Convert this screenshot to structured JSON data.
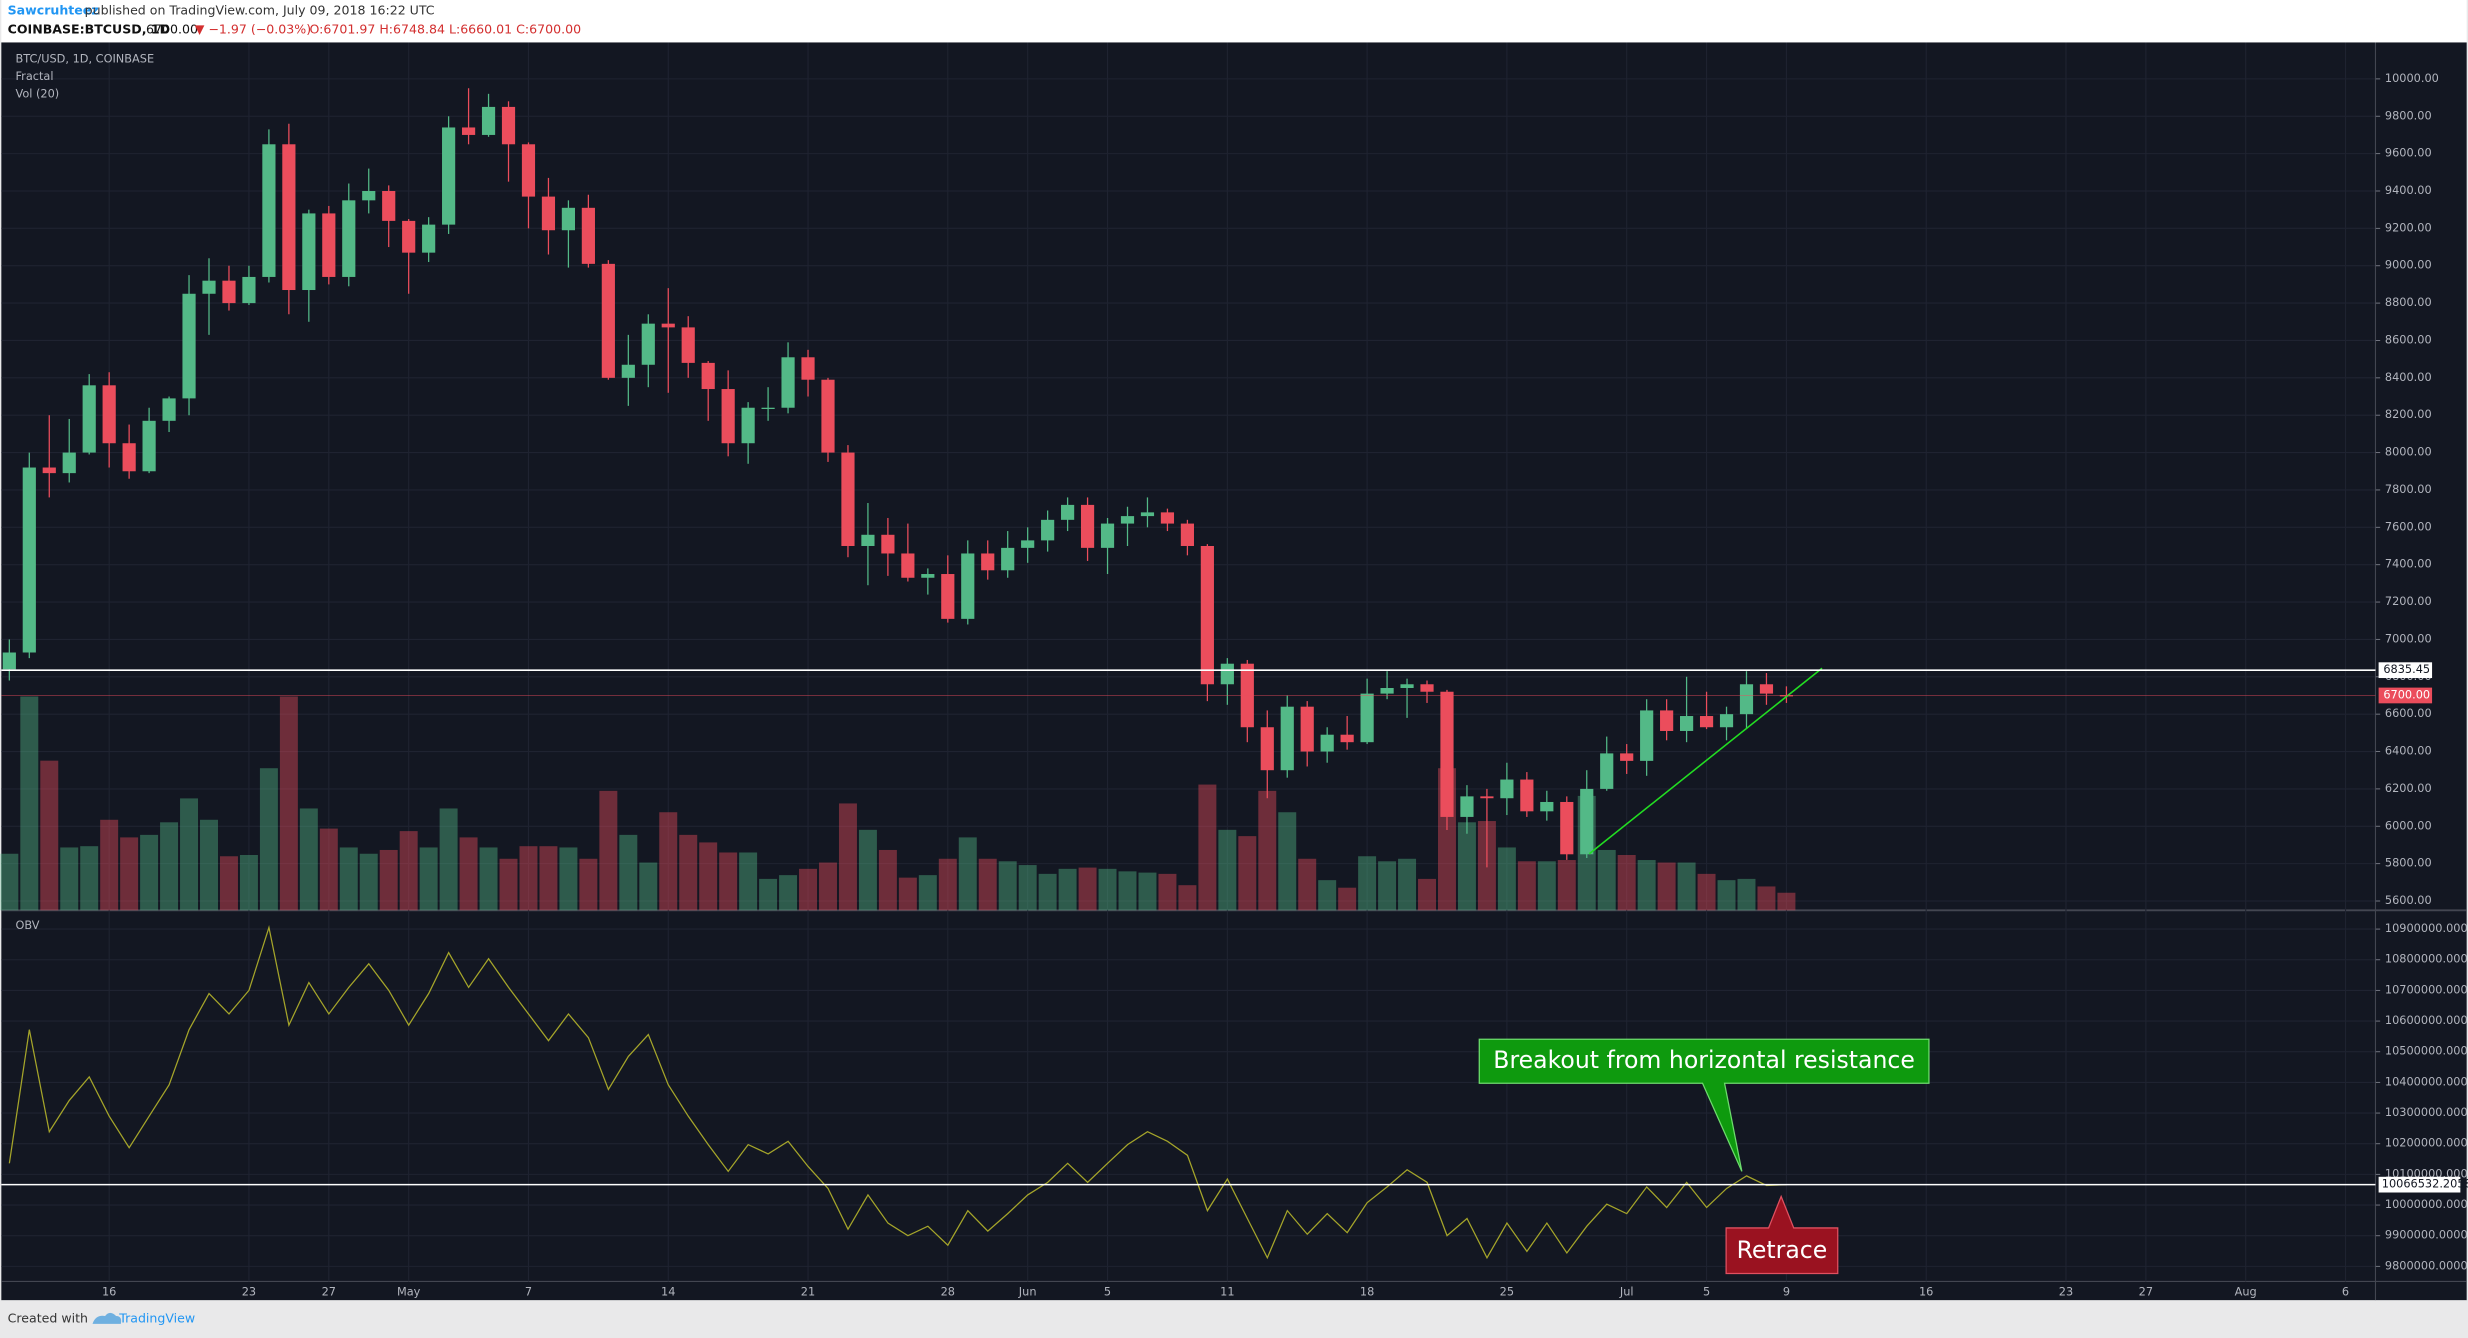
{
  "header": {
    "author": "Sawcruhteez",
    "published": "published on TradingView.com, July 09, 2018 16:22 UTC",
    "symbol": "COINBASE:BTCUSD, 1D",
    "price": "6700.00",
    "change": "▼ −1.97 (−0.03%)",
    "ohlc": "O:6701.97 H:6748.84 L:6660.01 C:6700.00"
  },
  "footer": {
    "created": "Created with",
    "brand": "TradingView"
  },
  "chart_data": {
    "type": "candlestick",
    "title": "BTC/USD, 1D, COINBASE",
    "indicators": [
      "Fractal",
      "Vol (20)"
    ],
    "obv_title": "OBV",
    "up_color": "#53b987",
    "down_color": "#eb4d5c",
    "obv_color": "#a5a52a",
    "xlim": [
      -0.4,
      118.5
    ],
    "ylim": [
      5550,
      10195
    ],
    "y2lim": [
      9751000,
      10956000
    ],
    "volume_lim": [
      0,
      69
    ],
    "xticks": [
      {
        "value": 5,
        "label": "16"
      },
      {
        "value": 12,
        "label": "23"
      },
      {
        "value": 16,
        "label": "27"
      },
      {
        "value": 20,
        "label": "May"
      },
      {
        "value": 26,
        "label": "7"
      },
      {
        "value": 33,
        "label": "14"
      },
      {
        "value": 40,
        "label": "21"
      },
      {
        "value": 47,
        "label": "28"
      },
      {
        "value": 51,
        "label": "Jun"
      },
      {
        "value": 55,
        "label": "5"
      },
      {
        "value": 61,
        "label": "11"
      },
      {
        "value": 68,
        "label": "18"
      },
      {
        "value": 75,
        "label": "25"
      },
      {
        "value": 81,
        "label": "Jul"
      },
      {
        "value": 85,
        "label": "5"
      },
      {
        "value": 89,
        "label": "9"
      },
      {
        "value": 96,
        "label": "16"
      },
      {
        "value": 103,
        "label": "23"
      },
      {
        "value": 107,
        "label": "27"
      },
      {
        "value": 112,
        "label": "Aug"
      },
      {
        "value": 117,
        "label": "6"
      }
    ],
    "yticks": [
      {
        "value": 5600,
        "label": "5600.00"
      },
      {
        "value": 5800,
        "label": "5800.00"
      },
      {
        "value": 6000,
        "label": "6000.00"
      },
      {
        "value": 6200,
        "label": "6200.00"
      },
      {
        "value": 6400,
        "label": "6400.00"
      },
      {
        "value": 6600,
        "label": "6600.00"
      },
      {
        "value": 6800,
        "label": "6800.00"
      },
      {
        "value": 7000,
        "label": "7000.00"
      },
      {
        "value": 7200,
        "label": "7200.00"
      },
      {
        "value": 7400,
        "label": "7400.00"
      },
      {
        "value": 7600,
        "label": "7600.00"
      },
      {
        "value": 7800,
        "label": "7800.00"
      },
      {
        "value": 8000,
        "label": "8000.00"
      },
      {
        "value": 8200,
        "label": "8200.00"
      },
      {
        "value": 8400,
        "label": "8400.00"
      },
      {
        "value": 8600,
        "label": "8600.00"
      },
      {
        "value": 8800,
        "label": "8800.00"
      },
      {
        "value": 9000,
        "label": "9000.00"
      },
      {
        "value": 9200,
        "label": "9200.00"
      },
      {
        "value": 9400,
        "label": "9400.00"
      },
      {
        "value": 9600,
        "label": "9600.00"
      },
      {
        "value": 9800,
        "label": "9800.00"
      },
      {
        "value": 10000,
        "label": "10000.00"
      }
    ],
    "y2ticks": [
      {
        "value": 9800000,
        "label": "9800000.0000"
      },
      {
        "value": 9900000,
        "label": "9900000.0000"
      },
      {
        "value": 10000000,
        "label": "10000000.0000"
      },
      {
        "value": 10100000,
        "label": "10100000.0000"
      },
      {
        "value": 10200000,
        "label": "10200000.0000"
      },
      {
        "value": 10300000,
        "label": "10300000.0000"
      },
      {
        "value": 10400000,
        "label": "10400000.0000"
      },
      {
        "value": 10500000,
        "label": "10500000.0000"
      },
      {
        "value": 10600000,
        "label": "10600000.0000"
      },
      {
        "value": 10700000,
        "label": "10700000.0000"
      },
      {
        "value": 10800000,
        "label": "10800000.0000"
      },
      {
        "value": 10900000,
        "label": "10900000.0000"
      }
    ],
    "price_line": 6835.45,
    "last_price": {
      "value": 6700,
      "label": "6700.00"
    },
    "obv_line": 10066532.2058,
    "annotations": [
      "Breakout from horizontal resistance",
      "Retrace"
    ],
    "ohlc": [
      [
        6840,
        7000,
        6780,
        6930
      ],
      [
        6930,
        8000,
        6900,
        7920
      ],
      [
        7920,
        8200,
        7760,
        7890
      ],
      [
        7890,
        8180,
        7840,
        8000
      ],
      [
        8000,
        8420,
        7990,
        8360
      ],
      [
        8360,
        8430,
        7920,
        8050
      ],
      [
        8050,
        8150,
        7860,
        7900
      ],
      [
        7900,
        8240,
        7890,
        8170
      ],
      [
        8170,
        8300,
        8110,
        8290
      ],
      [
        8290,
        8950,
        8200,
        8850
      ],
      [
        8850,
        9040,
        8630,
        8920
      ],
      [
        8920,
        9000,
        8760,
        8800
      ],
      [
        8800,
        9000,
        8790,
        8940
      ],
      [
        8940,
        9730,
        8910,
        9650
      ],
      [
        9650,
        9760,
        8740,
        8870
      ],
      [
        8870,
        9300,
        8700,
        9280
      ],
      [
        9280,
        9320,
        8900,
        8940
      ],
      [
        8940,
        9440,
        8890,
        9350
      ],
      [
        9350,
        9520,
        9280,
        9400
      ],
      [
        9400,
        9430,
        9100,
        9240
      ],
      [
        9240,
        9250,
        8850,
        9070
      ],
      [
        9070,
        9260,
        9020,
        9220
      ],
      [
        9220,
        9800,
        9170,
        9740
      ],
      [
        9740,
        9950,
        9650,
        9700
      ],
      [
        9700,
        9920,
        9690,
        9850
      ],
      [
        9850,
        9880,
        9450,
        9650
      ],
      [
        9650,
        9660,
        9200,
        9370
      ],
      [
        9370,
        9470,
        9060,
        9190
      ],
      [
        9190,
        9350,
        8990,
        9310
      ],
      [
        9310,
        9380,
        8990,
        9010
      ],
      [
        9010,
        9030,
        8390,
        8400
      ],
      [
        8400,
        8630,
        8250,
        8470
      ],
      [
        8470,
        8740,
        8350,
        8690
      ],
      [
        8690,
        8880,
        8320,
        8670
      ],
      [
        8670,
        8730,
        8400,
        8480
      ],
      [
        8480,
        8490,
        8170,
        8340
      ],
      [
        8340,
        8440,
        7980,
        8050
      ],
      [
        8050,
        8270,
        7940,
        8240
      ],
      [
        8240,
        8350,
        8170,
        8240
      ],
      [
        8240,
        8590,
        8210,
        8510
      ],
      [
        8510,
        8550,
        8300,
        8390
      ],
      [
        8390,
        8400,
        7950,
        8000
      ],
      [
        8000,
        8040,
        7440,
        7500
      ],
      [
        7500,
        7730,
        7290,
        7560
      ],
      [
        7560,
        7650,
        7340,
        7460
      ],
      [
        7460,
        7620,
        7310,
        7330
      ],
      [
        7330,
        7380,
        7240,
        7350
      ],
      [
        7350,
        7450,
        7090,
        7110
      ],
      [
        7110,
        7530,
        7080,
        7460
      ],
      [
        7460,
        7530,
        7320,
        7370
      ],
      [
        7370,
        7580,
        7330,
        7490
      ],
      [
        7490,
        7600,
        7410,
        7530
      ],
      [
        7530,
        7690,
        7470,
        7640
      ],
      [
        7640,
        7760,
        7580,
        7720
      ],
      [
        7720,
        7760,
        7420,
        7490
      ],
      [
        7490,
        7650,
        7350,
        7620
      ],
      [
        7620,
        7710,
        7500,
        7660
      ],
      [
        7660,
        7760,
        7600,
        7680
      ],
      [
        7680,
        7700,
        7580,
        7620
      ],
      [
        7620,
        7640,
        7450,
        7500
      ],
      [
        7500,
        7510,
        6670,
        6760
      ],
      [
        6760,
        6900,
        6650,
        6870
      ],
      [
        6870,
        6890,
        6450,
        6530
      ],
      [
        6530,
        6620,
        6150,
        6300
      ],
      [
        6300,
        6700,
        6260,
        6640
      ],
      [
        6640,
        6670,
        6320,
        6400
      ],
      [
        6400,
        6530,
        6340,
        6490
      ],
      [
        6490,
        6590,
        6410,
        6450
      ],
      [
        6450,
        6790,
        6440,
        6710
      ],
      [
        6710,
        6830,
        6680,
        6740
      ],
      [
        6740,
        6790,
        6580,
        6760
      ],
      [
        6760,
        6780,
        6660,
        6720
      ],
      [
        6720,
        6730,
        5980,
        6050
      ],
      [
        6050,
        6220,
        5960,
        6160
      ],
      [
        6160,
        6200,
        5780,
        6150
      ],
      [
        6150,
        6340,
        6060,
        6250
      ],
      [
        6250,
        6290,
        6050,
        6080
      ],
      [
        6080,
        6190,
        6030,
        6130
      ],
      [
        6130,
        6160,
        5820,
        5850
      ],
      [
        5850,
        6300,
        5830,
        6200
      ],
      [
        6200,
        6480,
        6190,
        6390
      ],
      [
        6390,
        6440,
        6280,
        6350
      ],
      [
        6350,
        6680,
        6270,
        6620
      ],
      [
        6620,
        6680,
        6460,
        6510
      ],
      [
        6510,
        6800,
        6450,
        6590
      ],
      [
        6590,
        6720,
        6520,
        6530
      ],
      [
        6530,
        6640,
        6460,
        6600
      ],
      [
        6600,
        6830,
        6520,
        6760
      ],
      [
        6760,
        6820,
        6650,
        6710
      ],
      [
        6701.97,
        6748.84,
        6660.01,
        6700
      ]
    ],
    "volume": [
      4.5,
      17,
      11.9,
      5,
      5.1,
      7.2,
      5.8,
      6,
      7,
      8.9,
      7.2,
      4.3,
      4.4,
      11.3,
      17,
      8.1,
      6.5,
      5,
      4.5,
      4.8,
      6.3,
      5,
      8.1,
      5.8,
      5,
      4.1,
      5.1,
      5.1,
      5,
      4.1,
      9.5,
      6,
      3.8,
      7.8,
      6,
      5.4,
      4.6,
      4.6,
      2.5,
      2.8,
      3.3,
      3.8,
      8.5,
      6.4,
      4.8,
      2.6,
      2.8,
      4.1,
      5.8,
      4.1,
      3.9,
      3.6,
      2.9,
      3.3,
      3.4,
      3.3,
      3.1,
      3,
      2.9,
      2,
      10,
      6.4,
      5.9,
      9.5,
      7.8,
      4.1,
      2.4,
      1.8,
      4.3,
      3.9,
      4.1,
      2.5,
      11.3,
      7,
      7.1,
      5,
      3.9,
      3.9,
      4,
      9.1,
      4.8,
      4.4,
      4,
      3.8,
      3.8,
      2.9,
      2.4,
      2.5,
      1.9,
      1.4
    ],
    "obv": [
      10136000,
      10572000,
      10239000,
      10341000,
      10418000,
      10290000,
      10187000,
      10290000,
      10392000,
      10572000,
      10690000,
      10623000,
      10700000,
      10905000,
      10587000,
      10726000,
      10623000,
      10710000,
      10787000,
      10700000,
      10587000,
      10690000,
      10823000,
      10710000,
      10803000,
      10710000,
      10623000,
      10536000,
      10623000,
      10546000,
      10377000,
      10485000,
      10556000,
      10392000,
      10290000,
      10197000,
      10110000,
      10197000,
      10167000,
      10208000,
      10126000,
      10054000,
      9921000,
      10033000,
      9941000,
      9900000,
      9931000,
      9869000,
      9982000,
      9915000,
      9972000,
      10033000,
      10074000,
      10136000,
      10074000,
      10136000,
      10197000,
      10239000,
      10208000,
      10162000,
      9982000,
      10085000,
      9956000,
      9828000,
      9982000,
      9905000,
      9972000,
      9910000,
      10008000,
      10059000,
      10115000,
      10074000,
      9900000,
      9956000,
      9828000,
      9941000,
      9849000,
      9941000,
      9844000,
      9931000,
      10003000,
      9972000,
      10059000,
      9992000,
      10074000,
      9992000,
      10054000,
      10095000,
      10064000,
      10066532.2058
    ]
  }
}
